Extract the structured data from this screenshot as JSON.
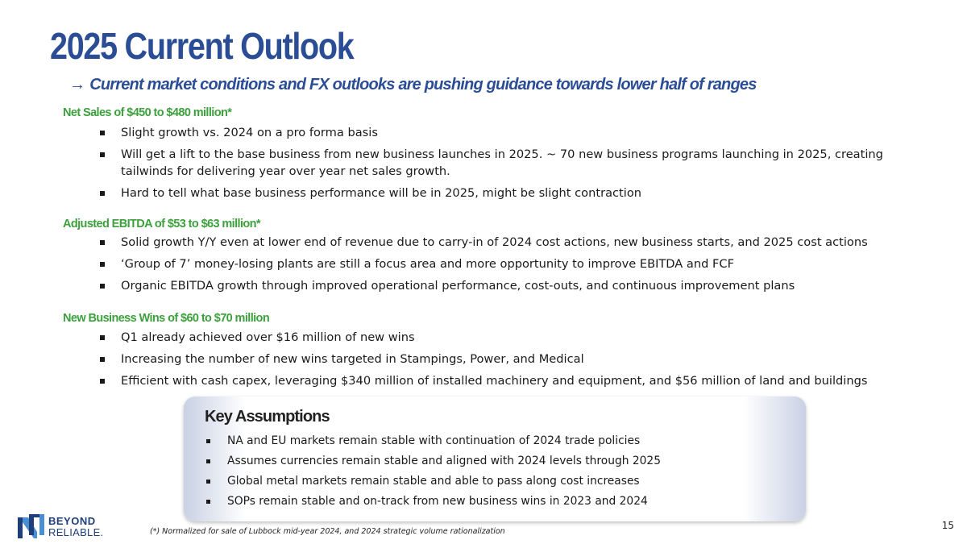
{
  "title": "2025 Current Outlook",
  "subtitle": {
    "arrow": "→",
    "text": "Current market conditions and FX outlooks are pushing guidance towards lower half of ranges"
  },
  "sections": [
    {
      "heading": "Net Sales of $450 to $480 million*",
      "bullets": [
        "Slight growth vs. 2024 on a pro forma basis",
        "Will get a lift to the base business from new business launches in 2025. ~ 70 new business programs launching in 2025, creating tailwinds for delivering year over year net sales growth.",
        "Hard to tell what base business performance will be in 2025, might be slight contraction"
      ]
    },
    {
      "heading": "Adjusted EBITDA of $53 to $63 million*",
      "bullets": [
        "Solid growth Y/Y even at lower end of revenue due to carry-in of 2024 cost actions, new business starts, and 2025 cost actions",
        "‘Group of 7’ money-losing plants are still a focus area and more opportunity to improve EBITDA and FCF",
        "Organic EBITDA growth through improved operational performance, cost-outs, and continuous improvement plans"
      ]
    },
    {
      "heading": "New Business Wins of $60 to $70 million",
      "bullets": [
        "Q1 already achieved over $16 million of new wins",
        "Increasing the number of new wins targeted in Stampings, Power, and Medical",
        "Efficient with cash capex, leveraging $340 million of installed machinery and equipment, and $56 million of land and buildings"
      ]
    }
  ],
  "key_assumptions": {
    "title": "Key Assumptions",
    "bullets": [
      "NA and EU markets remain stable with continuation of 2024 trade policies",
      "Assumes currencies remain stable and aligned with 2024 levels through 2025",
      "Global metal markets remain stable and able to pass along cost increases",
      "SOPs remain stable and on-track from new business wins in 2023 and 2024"
    ]
  },
  "logo": {
    "line1": "BEYOND",
    "line2": "RELIABLE."
  },
  "footnote": "(*) Normalized for sale of Lubbock mid-year 2024, and 2024 strategic volume rationalization",
  "page_number": "15",
  "colors": {
    "title_blue": "#2a4d96",
    "section_green": "#3ca03c",
    "logo_blue": "#1f3f7a"
  }
}
